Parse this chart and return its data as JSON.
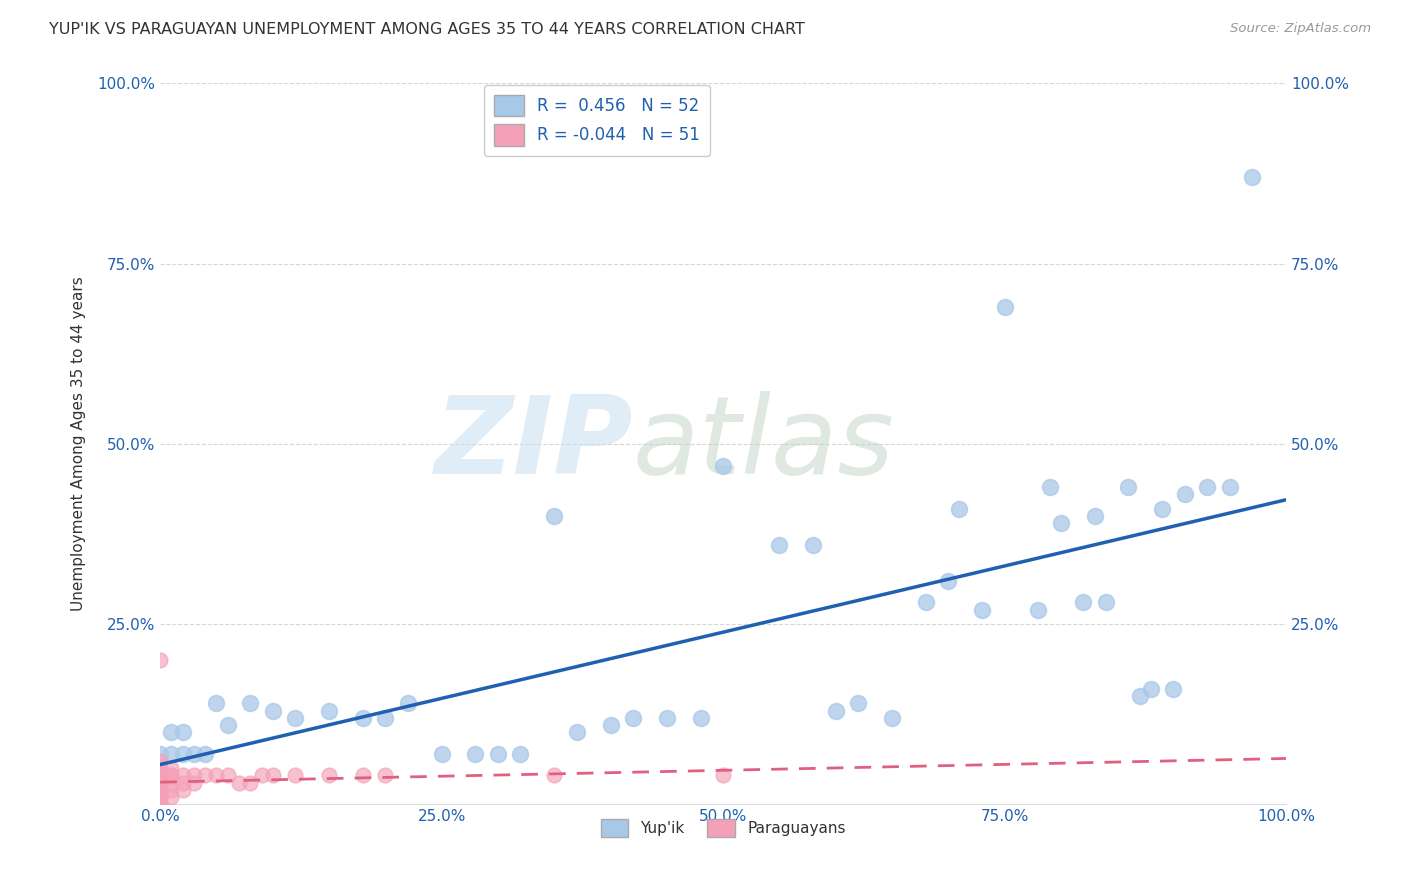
{
  "title": "YUP'IK VS PARAGUAYAN UNEMPLOYMENT AMONG AGES 35 TO 44 YEARS CORRELATION CHART",
  "source": "Source: ZipAtlas.com",
  "ylabel": "Unemployment Among Ages 35 to 44 years",
  "r_yupik": 0.456,
  "n_yupik": 52,
  "r_paraguayan": -0.044,
  "n_paraguayan": 51,
  "yupik_color": "#a8c8e8",
  "paraguayan_color": "#f4a0b8",
  "line_yupik_color": "#2060b0",
  "line_paraguayan_color": "#e06080",
  "background_color": "#ffffff",
  "xlim": [
    0.0,
    1.0
  ],
  "ylim": [
    0.0,
    1.0
  ],
  "xtick_labels": [
    "0.0%",
    "25.0%",
    "50.0%",
    "75.0%",
    "100.0%"
  ],
  "xtick_values": [
    0.0,
    0.25,
    0.5,
    0.75,
    1.0
  ],
  "ytick_labels": [
    "",
    "25.0%",
    "50.0%",
    "75.0%",
    "100.0%"
  ],
  "ytick_values": [
    0.0,
    0.25,
    0.5,
    0.75,
    1.0
  ],
  "yupik_x": [
    0.97,
    0.95,
    0.93,
    0.91,
    0.9,
    0.89,
    0.88,
    0.87,
    0.86,
    0.84,
    0.83,
    0.82,
    0.8,
    0.79,
    0.78,
    0.75,
    0.73,
    0.71,
    0.7,
    0.68,
    0.65,
    0.62,
    0.6,
    0.58,
    0.55,
    0.5,
    0.48,
    0.45,
    0.42,
    0.4,
    0.37,
    0.35,
    0.32,
    0.3,
    0.28,
    0.25,
    0.22,
    0.2,
    0.18,
    0.15,
    0.12,
    0.1,
    0.08,
    0.06,
    0.05,
    0.04,
    0.03,
    0.02,
    0.02,
    0.01,
    0.01,
    0.0
  ],
  "yupik_y": [
    0.87,
    0.44,
    0.44,
    0.43,
    0.16,
    0.41,
    0.16,
    0.15,
    0.44,
    0.28,
    0.4,
    0.28,
    0.39,
    0.44,
    0.27,
    0.69,
    0.27,
    0.41,
    0.31,
    0.28,
    0.12,
    0.14,
    0.13,
    0.36,
    0.36,
    0.47,
    0.12,
    0.12,
    0.12,
    0.11,
    0.1,
    0.4,
    0.07,
    0.07,
    0.07,
    0.07,
    0.14,
    0.12,
    0.12,
    0.13,
    0.12,
    0.13,
    0.14,
    0.11,
    0.14,
    0.07,
    0.07,
    0.1,
    0.07,
    0.07,
    0.1,
    0.07
  ],
  "paraguayan_x": [
    0.0,
    0.0,
    0.0,
    0.0,
    0.0,
    0.0,
    0.0,
    0.0,
    0.0,
    0.0,
    0.0,
    0.0,
    0.0,
    0.0,
    0.0,
    0.0,
    0.0,
    0.0,
    0.0,
    0.0,
    0.0,
    0.0,
    0.0,
    0.0,
    0.0,
    0.0,
    0.0,
    0.01,
    0.01,
    0.01,
    0.01,
    0.01,
    0.01,
    0.02,
    0.02,
    0.02,
    0.03,
    0.03,
    0.04,
    0.05,
    0.06,
    0.07,
    0.08,
    0.09,
    0.1,
    0.12,
    0.15,
    0.18,
    0.2,
    0.35,
    0.5
  ],
  "paraguayan_y": [
    0.2,
    0.06,
    0.05,
    0.05,
    0.04,
    0.04,
    0.04,
    0.04,
    0.03,
    0.03,
    0.03,
    0.03,
    0.02,
    0.02,
    0.02,
    0.02,
    0.02,
    0.01,
    0.01,
    0.01,
    0.01,
    0.01,
    0.0,
    0.0,
    0.0,
    0.0,
    0.0,
    0.05,
    0.04,
    0.04,
    0.03,
    0.02,
    0.01,
    0.04,
    0.03,
    0.02,
    0.04,
    0.03,
    0.04,
    0.04,
    0.04,
    0.03,
    0.03,
    0.04,
    0.04,
    0.04,
    0.04,
    0.04,
    0.04,
    0.04,
    0.04
  ],
  "legend_r_label1": "R =  0.456   N = 52",
  "legend_r_label2": "R = -0.044   N = 51",
  "legend_bottom_label1": "Yup'ik",
  "legend_bottom_label2": "Paraguayans"
}
